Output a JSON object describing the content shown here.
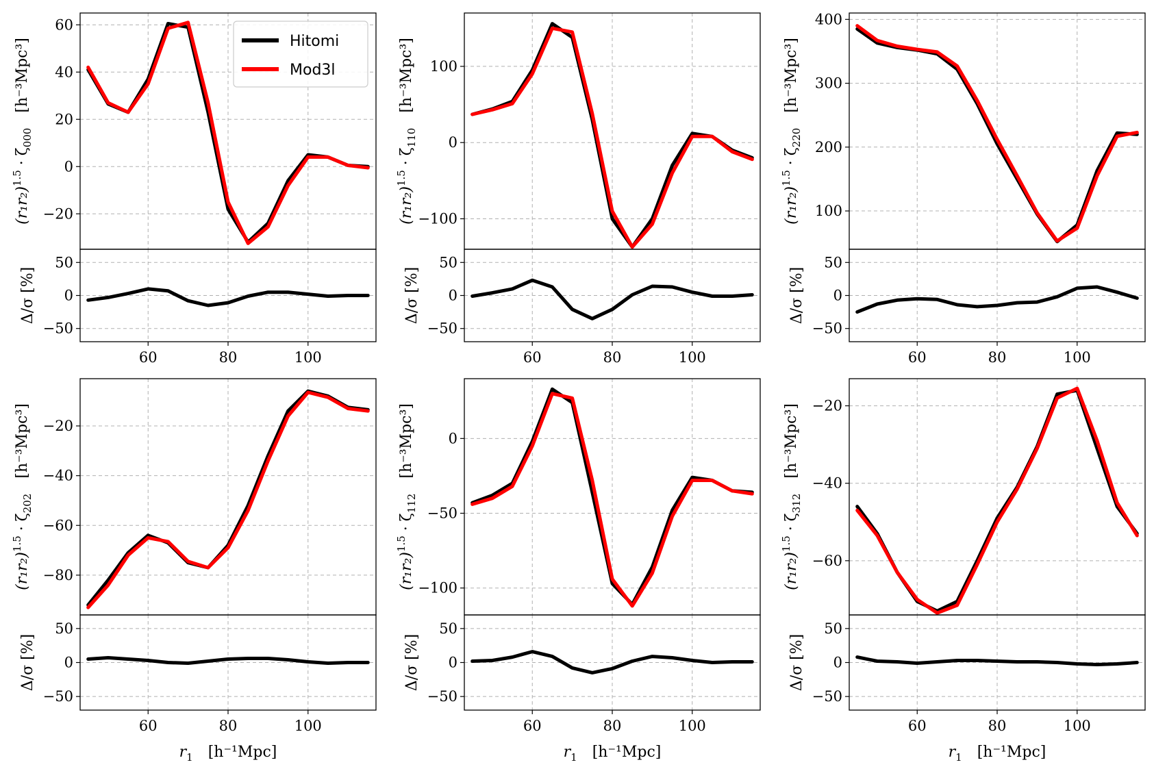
{
  "colors": {
    "hitomi": "#000000",
    "mod3l": "#ff0000",
    "grid": "#b0b0b0"
  },
  "legend": {
    "entries": [
      {
        "name": "Hitomi",
        "color": "#000000"
      },
      {
        "name": "Mod3l",
        "color": "#ff0000"
      }
    ],
    "placement": "upper-right of first panel"
  },
  "x_common": {
    "label_main": "r",
    "label_sub": "1",
    "label_units": "[h⁻¹Mpc]",
    "xlim": [
      43,
      117
    ],
    "ticks": [
      60,
      80,
      100
    ],
    "ticks_labelled_rows": [
      0,
      1
    ]
  },
  "chart_data": [
    {
      "type": "line",
      "panel": "000",
      "ylabel": "(r₁r₂)^1.5 · ζ₀₀₀   [h⁻³Mpc³]",
      "ylabel_prefix": "(r₁r₂)",
      "ylabel_power": "1.5",
      "ylabel_zeta": "· ζ",
      "ylabel_sub": "000",
      "ylabel_units": "[h⁻³Mpc³]",
      "ylim": [
        -35,
        65
      ],
      "yticks": [
        -20,
        0,
        20,
        40,
        60
      ],
      "x": [
        45,
        50,
        55,
        60,
        65,
        70,
        75,
        80,
        85,
        90,
        95,
        100,
        105,
        110,
        115
      ],
      "series": [
        {
          "name": "Hitomi",
          "values": [
            41,
            26.5,
            23,
            37,
            60.5,
            59,
            23,
            -18,
            -32,
            -24,
            -6,
            5,
            4,
            0.5,
            0
          ]
        },
        {
          "name": "Mod3l",
          "values": [
            42,
            27,
            23,
            35,
            58.5,
            61,
            27,
            -15,
            -32.5,
            -25.5,
            -8,
            4,
            4,
            0.5,
            -0.5
          ]
        }
      ],
      "residual": {
        "ylabel": "Δ/σ [%]",
        "ylim": [
          -70,
          70
        ],
        "yticks": [
          -50,
          0,
          50
        ],
        "values": [
          -7,
          -3,
          3,
          10,
          7,
          -8,
          -15,
          -11,
          -1,
          5,
          5,
          2,
          -1,
          0,
          0
        ]
      }
    },
    {
      "type": "line",
      "panel": "110",
      "ylabel": "(r₁r₂)^1.5 · ζ₁₁₀   [h⁻³Mpc³]",
      "ylabel_prefix": "(r₁r₂)",
      "ylabel_power": "1.5",
      "ylabel_zeta": "· ζ",
      "ylabel_sub": "110",
      "ylabel_units": "[h⁻³Mpc³]",
      "ylim": [
        -140,
        170
      ],
      "yticks": [
        -100,
        0,
        100
      ],
      "x": [
        45,
        50,
        55,
        60,
        65,
        70,
        75,
        80,
        85,
        90,
        95,
        100,
        105,
        110,
        115
      ],
      "series": [
        {
          "name": "Hitomi",
          "values": [
            37,
            44,
            54,
            95,
            156,
            138,
            30,
            -100,
            -137,
            -100,
            -30,
            12,
            8,
            -10,
            -20
          ]
        },
        {
          "name": "Mod3l",
          "values": [
            37,
            43,
            51,
            90,
            150,
            145,
            38,
            -90,
            -137,
            -107,
            -40,
            8,
            8,
            -12,
            -22
          ]
        }
      ],
      "residual": {
        "ylabel": "Δ/σ [%]",
        "ylim": [
          -70,
          70
        ],
        "yticks": [
          -50,
          0,
          50
        ],
        "values": [
          -1,
          4,
          10,
          23,
          13,
          -21,
          -35,
          -21,
          1,
          14,
          13,
          5,
          -1,
          -1,
          1
        ]
      }
    },
    {
      "type": "line",
      "panel": "220",
      "ylabel": "(r₁r₂)^1.5 · ζ₂₂₀   [h⁻³Mpc³]",
      "ylabel_prefix": "(r₁r₂)",
      "ylabel_power": "1.5",
      "ylabel_zeta": "· ζ",
      "ylabel_sub": "220",
      "ylabel_units": "[h⁻³Mpc³]",
      "ylim": [
        40,
        410
      ],
      "yticks": [
        100,
        200,
        300,
        400
      ],
      "x": [
        45,
        50,
        55,
        60,
        65,
        70,
        75,
        80,
        85,
        90,
        95,
        100,
        105,
        110,
        115
      ],
      "series": [
        {
          "name": "Hitomi",
          "values": [
            385,
            363,
            356,
            352,
            346,
            322,
            268,
            205,
            150,
            95,
            52,
            78,
            163,
            222,
            220
          ]
        },
        {
          "name": "Mod3l",
          "values": [
            390,
            367,
            358,
            353,
            349,
            327,
            273,
            212,
            155,
            97,
            53,
            73,
            155,
            217,
            223
          ]
        }
      ],
      "residual": {
        "ylabel": "Δ/σ [%]",
        "ylim": [
          -70,
          70
        ],
        "yticks": [
          -50,
          0,
          50
        ],
        "values": [
          -25,
          -13,
          -7,
          -5,
          -6,
          -14,
          -17,
          -15,
          -11,
          -10,
          -2,
          11,
          13,
          5,
          -4
        ]
      }
    },
    {
      "type": "line",
      "panel": "202",
      "ylabel": "(r₁r₂)^1.5 · ζ₂₀₂   [h⁻³Mpc³]",
      "ylabel_prefix": "(r₁r₂)",
      "ylabel_power": "1.5",
      "ylabel_zeta": "· ζ",
      "ylabel_sub": "202",
      "ylabel_units": "[h⁻³Mpc³]",
      "ylim": [
        -96,
        -1
      ],
      "yticks": [
        -80,
        -60,
        -40,
        -20
      ],
      "x": [
        45,
        50,
        55,
        60,
        65,
        70,
        75,
        80,
        85,
        90,
        95,
        100,
        105,
        110,
        115
      ],
      "series": [
        {
          "name": "Hitomi",
          "values": [
            -92,
            -82,
            -71,
            -64,
            -67,
            -75,
            -77,
            -68,
            -52,
            -32,
            -14,
            -6,
            -8,
            -12.5,
            -13.5
          ]
        },
        {
          "name": "Mod3l",
          "values": [
            -93,
            -84,
            -72,
            -65,
            -66.5,
            -74.5,
            -77,
            -69,
            -54,
            -34,
            -16,
            -6.5,
            -8.5,
            -13,
            -14
          ]
        }
      ],
      "residual": {
        "ylabel": "Δ/σ [%]",
        "ylim": [
          -70,
          70
        ],
        "yticks": [
          -50,
          0,
          50
        ],
        "values": [
          5,
          7,
          5,
          3,
          0,
          -1,
          2,
          5,
          6,
          6,
          4,
          1,
          -1,
          0,
          0
        ]
      }
    },
    {
      "type": "line",
      "panel": "112",
      "ylabel": "(r₁r₂)^1.5 · ζ₁₁₂   [h⁻³Mpc³]",
      "ylabel_prefix": "(r₁r₂)",
      "ylabel_power": "1.5",
      "ylabel_zeta": "· ζ",
      "ylabel_sub": "112",
      "ylabel_units": "[h⁻³Mpc³]",
      "ylim": [
        -118,
        40
      ],
      "yticks": [
        -100,
        -50,
        0
      ],
      "x": [
        45,
        50,
        55,
        60,
        65,
        70,
        75,
        80,
        85,
        90,
        95,
        100,
        105,
        110,
        115
      ],
      "series": [
        {
          "name": "Hitomi",
          "values": [
            -43,
            -38,
            -30,
            -2,
            33,
            24,
            -36,
            -97,
            -111,
            -86,
            -48,
            -26,
            -28,
            -35,
            -36
          ]
        },
        {
          "name": "Mod3l",
          "values": [
            -44,
            -40,
            -32,
            -5,
            30,
            27,
            -28,
            -94,
            -112,
            -90,
            -52,
            -28,
            -28,
            -35,
            -37
          ]
        }
      ],
      "residual": {
        "ylabel": "Δ/σ [%]",
        "ylim": [
          -70,
          70
        ],
        "yticks": [
          -50,
          0,
          50
        ],
        "values": [
          2,
          3,
          8,
          16,
          9,
          -8,
          -15,
          -9,
          2,
          9,
          7,
          3,
          0,
          1,
          1
        ]
      }
    },
    {
      "type": "line",
      "panel": "312",
      "ylabel": "(r₁r₂)^1.5 · ζ₃₁₂   [h⁻³Mpc³]",
      "ylabel_prefix": "(r₁r₂)",
      "ylabel_power": "1.5",
      "ylabel_zeta": "· ζ",
      "ylabel_sub": "312",
      "ylabel_units": "[h⁻³Mpc³]",
      "ylim": [
        -74,
        -13
      ],
      "yticks": [
        -60,
        -40,
        -20
      ],
      "x": [
        45,
        50,
        55,
        60,
        65,
        70,
        75,
        80,
        85,
        90,
        95,
        100,
        105,
        110,
        115
      ],
      "series": [
        {
          "name": "Hitomi",
          "values": [
            -46,
            -53,
            -63,
            -70.5,
            -73,
            -70.5,
            -60,
            -49,
            -41,
            -30.5,
            -17,
            -16,
            -31,
            -46,
            -53
          ]
        },
        {
          "name": "Mod3l",
          "values": [
            -47,
            -53.5,
            -63,
            -70,
            -73.5,
            -71.5,
            -61,
            -50,
            -41.5,
            -31,
            -18,
            -15.5,
            -29,
            -45,
            -53.5
          ]
        }
      ],
      "residual": {
        "ylabel": "Δ/σ [%]",
        "ylim": [
          -70,
          70
        ],
        "yticks": [
          -50,
          0,
          50
        ],
        "values": [
          8,
          2,
          1,
          -1,
          1,
          3,
          3,
          2,
          1,
          1,
          0,
          -2,
          -3,
          -2,
          0
        ]
      }
    }
  ]
}
